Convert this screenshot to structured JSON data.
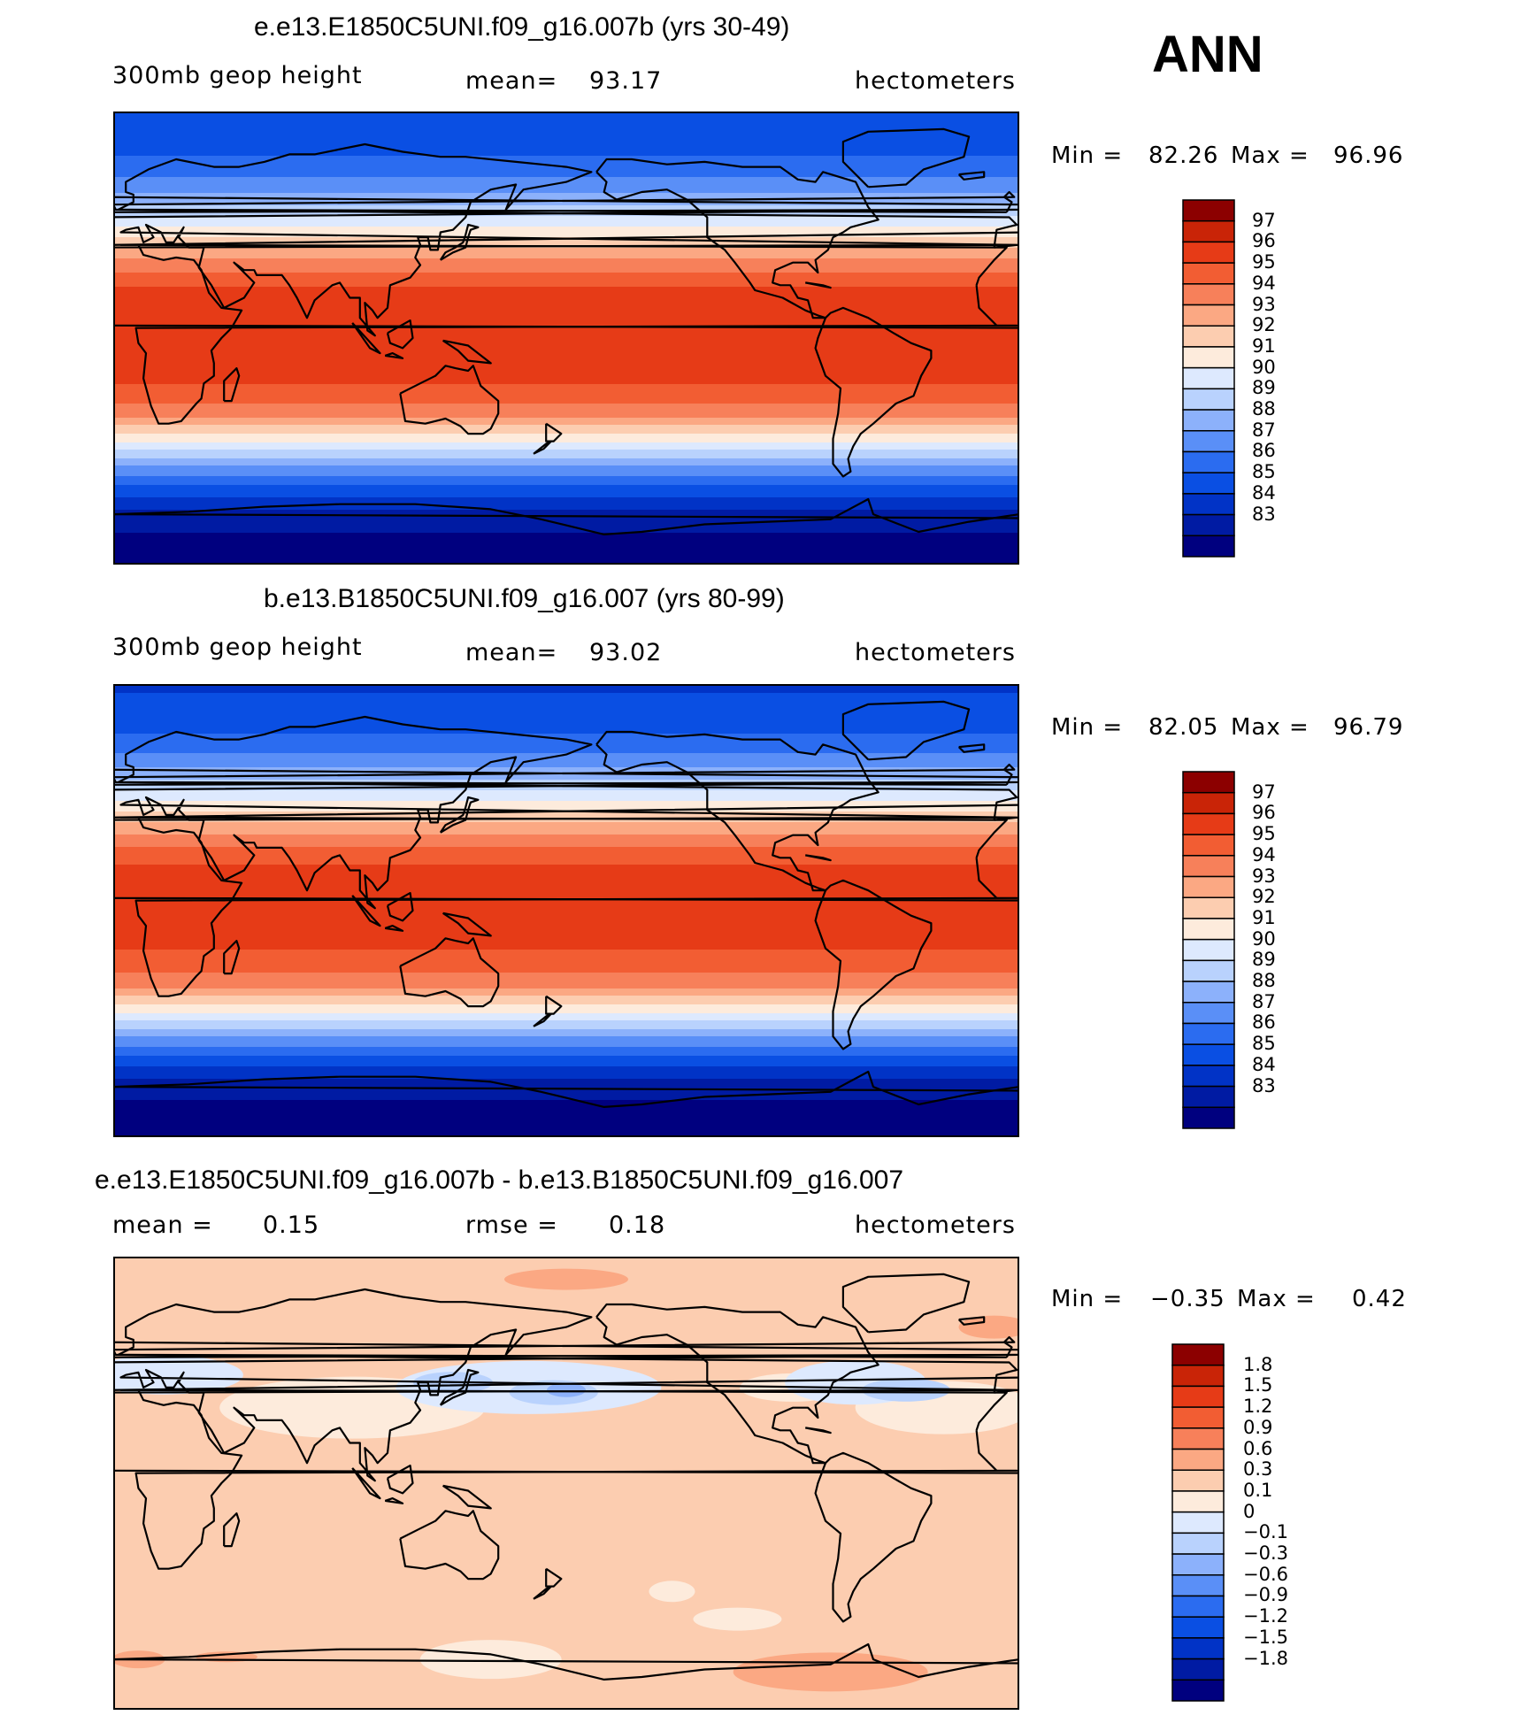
{
  "season": "ANN",
  "colors": {
    "abs_scale": [
      "#00007f",
      "#001ba3",
      "#0133c6",
      "#0a4fe3",
      "#2b6cf0",
      "#5a8ff7",
      "#8cb1fb",
      "#b9d2fd",
      "#dde9fe",
      "#fdebdc",
      "#fccdb0",
      "#fba883",
      "#f7805a",
      "#f25d33",
      "#e63b17",
      "#c92407",
      "#8c0000"
    ],
    "diff_scale": [
      "#00007f",
      "#001ba3",
      "#0133c6",
      "#0a4fe3",
      "#2b6cf0",
      "#5a8ff7",
      "#8cb1fb",
      "#b9d2fd",
      "#dde9fe",
      "#fdebdc",
      "#fccdb0",
      "#fba883",
      "#f7805a",
      "#f25d33",
      "#e63b17",
      "#c92407",
      "#8c0000"
    ],
    "land_outline": "#000000"
  },
  "chart_data": [
    {
      "type": "heatmap",
      "title": "e.e13.E1850C5UNI.f09_g16.007b (yrs 30-49)",
      "variable": "300mb geop height",
      "mean_label": "mean=",
      "mean_value": "93.17",
      "units": "hectometers",
      "min_label": "Min =",
      "min_value": "82.26",
      "max_label": "Max =",
      "max_value": "96.96",
      "colorbar_labels": [
        "97",
        "96",
        "95",
        "94",
        "93",
        "92",
        "91",
        "90",
        "89",
        "88",
        "87",
        "86",
        "85",
        "84",
        "83"
      ],
      "lat_profile_latitudes": [
        -90,
        -80,
        -70,
        -60,
        -50,
        -40,
        -30,
        -20,
        -10,
        0,
        10,
        20,
        30,
        40,
        50,
        60,
        70,
        80,
        90
      ],
      "lat_profile_values": [
        82.3,
        82.8,
        83.6,
        85.6,
        88.2,
        91.4,
        94.4,
        95.9,
        96.6,
        96.9,
        96.8,
        96.1,
        94.3,
        92.1,
        89.6,
        87.6,
        86.2,
        85.4,
        85.1
      ]
    },
    {
      "type": "heatmap",
      "title": "b.e13.B1850C5UNI.f09_g16.007 (yrs 80-99)",
      "variable": "300mb geop height",
      "mean_label": "mean=",
      "mean_value": "93.02",
      "units": "hectometers",
      "min_label": "Min =",
      "min_value": "82.05",
      "max_label": "Max =",
      "max_value": "96.79",
      "colorbar_labels": [
        "97",
        "96",
        "95",
        "94",
        "93",
        "92",
        "91",
        "90",
        "89",
        "88",
        "87",
        "86",
        "85",
        "84",
        "83"
      ],
      "lat_profile_latitudes": [
        -90,
        -80,
        -70,
        -60,
        -50,
        -40,
        -30,
        -20,
        -10,
        0,
        10,
        20,
        30,
        40,
        50,
        60,
        70,
        80,
        90
      ],
      "lat_profile_values": [
        82.1,
        82.6,
        83.4,
        85.4,
        88.0,
        91.2,
        94.2,
        95.7,
        96.4,
        96.7,
        96.6,
        95.9,
        94.1,
        91.9,
        89.4,
        87.4,
        86.0,
        85.2,
        84.9
      ]
    },
    {
      "type": "heatmap",
      "title": "e.e13.E1850C5UNI.f09_g16.007b - b.e13.B1850C5UNI.f09_g16.007",
      "mean_label": "mean =",
      "mean_value": "0.15",
      "rmse_label": "rmse =",
      "rmse_value": "0.18",
      "units": "hectometers",
      "min_label": "Min =",
      "min_value": "−0.35",
      "max_label": "Max =",
      "max_value": "0.42",
      "colorbar_labels": [
        "1.8",
        "1.5",
        "1.2",
        "0.9",
        "0.6",
        "0.3",
        "0.1",
        "0",
        "−0.1",
        "−0.3",
        "−0.6",
        "−0.9",
        "−1.2",
        "−1.5",
        "−1.8"
      ],
      "background_level_value": 0.2
    }
  ]
}
